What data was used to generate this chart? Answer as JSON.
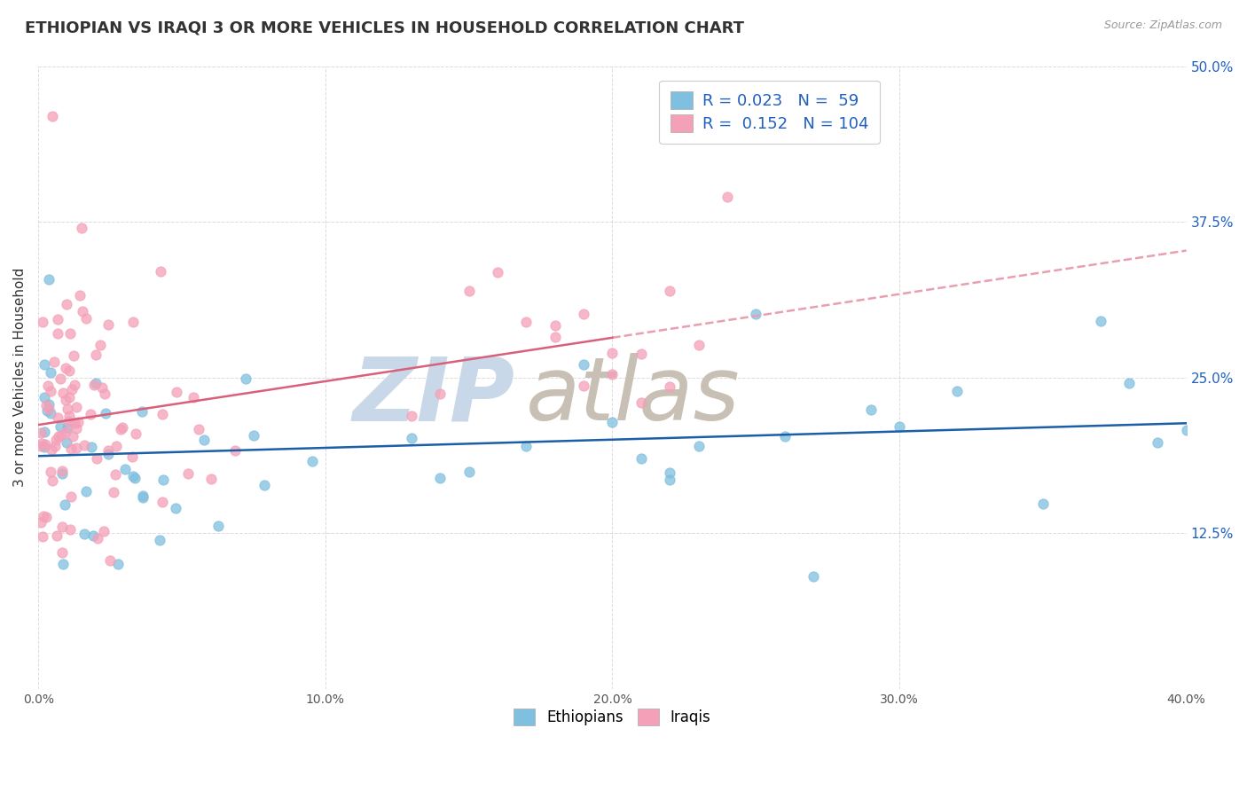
{
  "title": "ETHIOPIAN VS IRAQI 3 OR MORE VEHICLES IN HOUSEHOLD CORRELATION CHART",
  "source": "Source: ZipAtlas.com",
  "ylabel": "3 or more Vehicles in Household",
  "xlim": [
    0.0,
    40.0
  ],
  "ylim": [
    0.0,
    50.0
  ],
  "xticks": [
    0.0,
    10.0,
    20.0,
    30.0,
    40.0
  ],
  "yticks": [
    0.0,
    12.5,
    25.0,
    37.5,
    50.0
  ],
  "legend_R": [
    0.023,
    0.152
  ],
  "legend_N": [
    59,
    104
  ],
  "ethiopian_color": "#7fbfdf",
  "iraqi_color": "#f4a0b8",
  "ethiopian_line_color": "#1a5fa8",
  "iraqi_line_color": "#d9607a",
  "iraqi_dashed_color": "#e8a0b0",
  "watermark_zip_color": "#c8d8e8",
  "watermark_atlas_color": "#c8c0b4",
  "eth_scatter_seed": 12,
  "irq_scatter_seed": 7,
  "background_color": "#ffffff",
  "grid_color": "#cccccc",
  "text_color": "#333333",
  "right_axis_color": "#2060c0",
  "source_color": "#999999"
}
